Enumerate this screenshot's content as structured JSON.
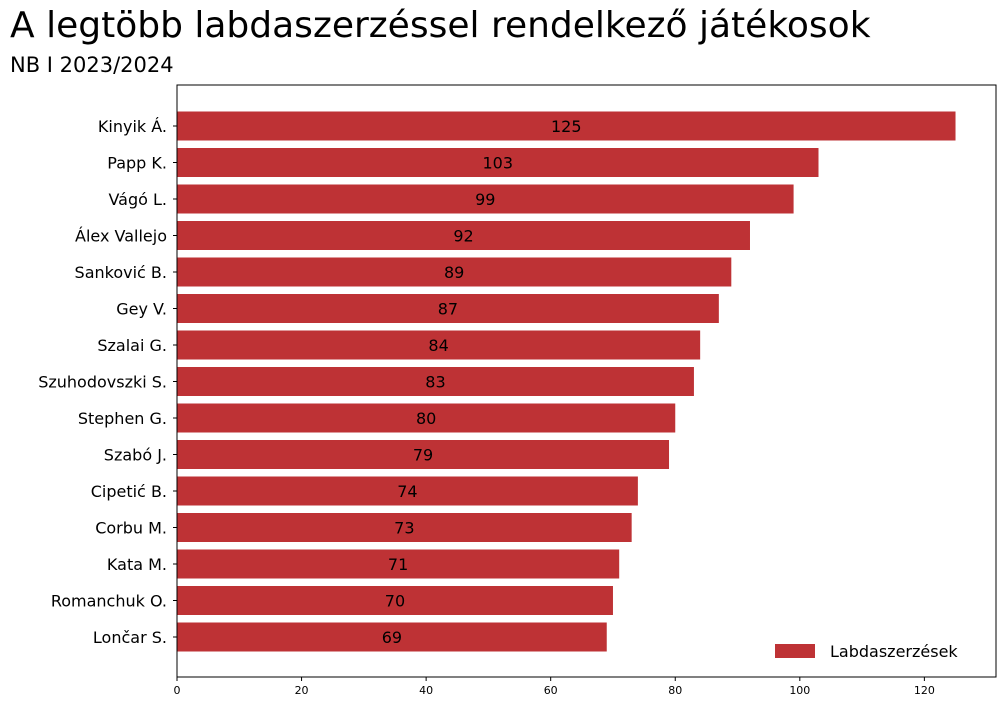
{
  "title": "A legtöbb labdaszerzéssel rendelkező játékosok",
  "subtitle": "NB I 2023/2024",
  "chart_data": {
    "type": "bar",
    "orientation": "horizontal",
    "categories": [
      "Kinyik Á.",
      "Papp K.",
      "Vágó L.",
      "Álex Vallejo",
      "Sanković B.",
      "Gey V.",
      "Szalai G.",
      "Szuhodovszki S.",
      "Stephen G.",
      "Szabó J.",
      "Cipetić B.",
      "Corbu M.",
      "Kata M.",
      "Romanchuk O.",
      "Lončar S."
    ],
    "series": [
      {
        "name": "Labdaszerzések",
        "values": [
          125,
          103,
          99,
          92,
          89,
          87,
          84,
          83,
          80,
          79,
          74,
          73,
          71,
          70,
          69
        ],
        "color": "#be3235"
      }
    ],
    "xlim": [
      0,
      131.5
    ],
    "xticks": [
      0,
      20,
      40,
      60,
      80,
      100,
      120
    ],
    "grid": false,
    "legend_position": "bottom-right"
  }
}
